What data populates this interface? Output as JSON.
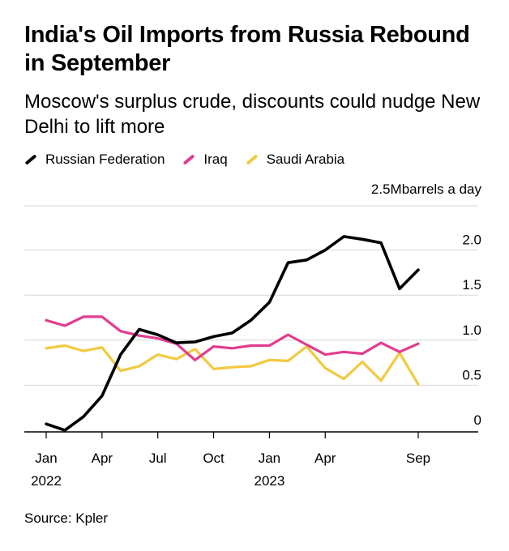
{
  "title": "India's Oil Imports from Russia Rebound in September",
  "subtitle": "Moscow's surplus crude, discounts could nudge New Delhi to lift more",
  "source": "Source: Kpler",
  "chart_data": {
    "type": "line",
    "unit_label": "2.5Mbarrels a day",
    "ylim": [
      0,
      2.5
    ],
    "yticks": [
      {
        "value": 0,
        "label": "0"
      },
      {
        "value": 0.5,
        "label": "0.5"
      },
      {
        "value": 1.0,
        "label": "1.0"
      },
      {
        "value": 1.5,
        "label": "1.5"
      },
      {
        "value": 2.0,
        "label": "2.0"
      }
    ],
    "xticks": [
      {
        "label": "Jan",
        "year": "2022",
        "index": 0
      },
      {
        "label": "Apr",
        "year": "",
        "index": 6
      },
      {
        "label": "Jul",
        "year": "",
        "index": 12
      },
      {
        "label": "Oct",
        "year": "",
        "index": 18
      },
      {
        "label": "Jan",
        "year": "2023",
        "index": 24
      },
      {
        "label": "Apr",
        "year": "",
        "index": 30
      },
      {
        "label": "Sep",
        "year": "",
        "index": 40
      }
    ],
    "x": [
      "Jan 2022",
      "",
      "Feb 2022",
      "",
      "Mar 2022",
      "",
      "Apr 2022",
      "",
      "May 2022",
      "",
      "Jun 2022",
      "",
      "Jul 2022",
      "",
      "Aug 2022",
      "",
      "Sep 2022",
      "",
      "Oct 2022",
      "",
      "Nov 2022",
      "",
      "Dec 2022",
      "",
      "Jan 2023",
      "",
      "Feb 2023",
      "",
      "Mar 2023",
      "",
      "Apr 2023",
      "",
      "May 2023",
      "",
      "Jun 2023",
      "",
      "Jul 2023",
      "",
      "Aug 2023",
      "",
      "Sep 2023"
    ],
    "series": [
      {
        "name": "Russian Federation",
        "color": "#000000",
        "points": [
          [
            0,
            0.07
          ],
          [
            2,
            0.0
          ],
          [
            4,
            0.15
          ],
          [
            6,
            0.38
          ],
          [
            8,
            0.84
          ],
          [
            10,
            1.12
          ],
          [
            12,
            1.06
          ],
          [
            14,
            0.97
          ],
          [
            16,
            0.98
          ],
          [
            18,
            1.04
          ],
          [
            20,
            1.08
          ],
          [
            22,
            1.22
          ],
          [
            24,
            1.42
          ],
          [
            26,
            1.86
          ],
          [
            28,
            1.89
          ],
          [
            30,
            2.0
          ],
          [
            32,
            2.15
          ],
          [
            34,
            2.12
          ],
          [
            36,
            2.08
          ],
          [
            38,
            1.57
          ],
          [
            40,
            1.78
          ]
        ]
      },
      {
        "name": "Iraq",
        "color": "#e23c8f",
        "points": [
          [
            0,
            1.22
          ],
          [
            2,
            1.16
          ],
          [
            4,
            1.26
          ],
          [
            6,
            1.26
          ],
          [
            8,
            1.1
          ],
          [
            10,
            1.05
          ],
          [
            12,
            1.02
          ],
          [
            14,
            0.96
          ],
          [
            16,
            0.78
          ],
          [
            18,
            0.93
          ],
          [
            20,
            0.91
          ],
          [
            22,
            0.94
          ],
          [
            24,
            0.94
          ],
          [
            26,
            1.06
          ],
          [
            28,
            0.95
          ],
          [
            30,
            0.84
          ],
          [
            32,
            0.87
          ],
          [
            34,
            0.85
          ],
          [
            36,
            0.97
          ],
          [
            38,
            0.87
          ],
          [
            40,
            0.96
          ]
        ]
      },
      {
        "name": "Saudi Arabia",
        "color": "#f2c940",
        "points": [
          [
            0,
            0.91
          ],
          [
            2,
            0.94
          ],
          [
            4,
            0.88
          ],
          [
            6,
            0.92
          ],
          [
            8,
            0.66
          ],
          [
            10,
            0.71
          ],
          [
            12,
            0.84
          ],
          [
            14,
            0.79
          ],
          [
            16,
            0.9
          ],
          [
            18,
            0.68
          ],
          [
            20,
            0.7
          ],
          [
            22,
            0.71
          ],
          [
            24,
            0.78
          ],
          [
            26,
            0.77
          ],
          [
            28,
            0.93
          ],
          [
            30,
            0.69
          ],
          [
            32,
            0.57
          ],
          [
            34,
            0.76
          ],
          [
            36,
            0.55
          ],
          [
            38,
            0.86
          ],
          [
            40,
            0.51
          ]
        ]
      }
    ],
    "grid": true,
    "legend_position": "top-left"
  }
}
